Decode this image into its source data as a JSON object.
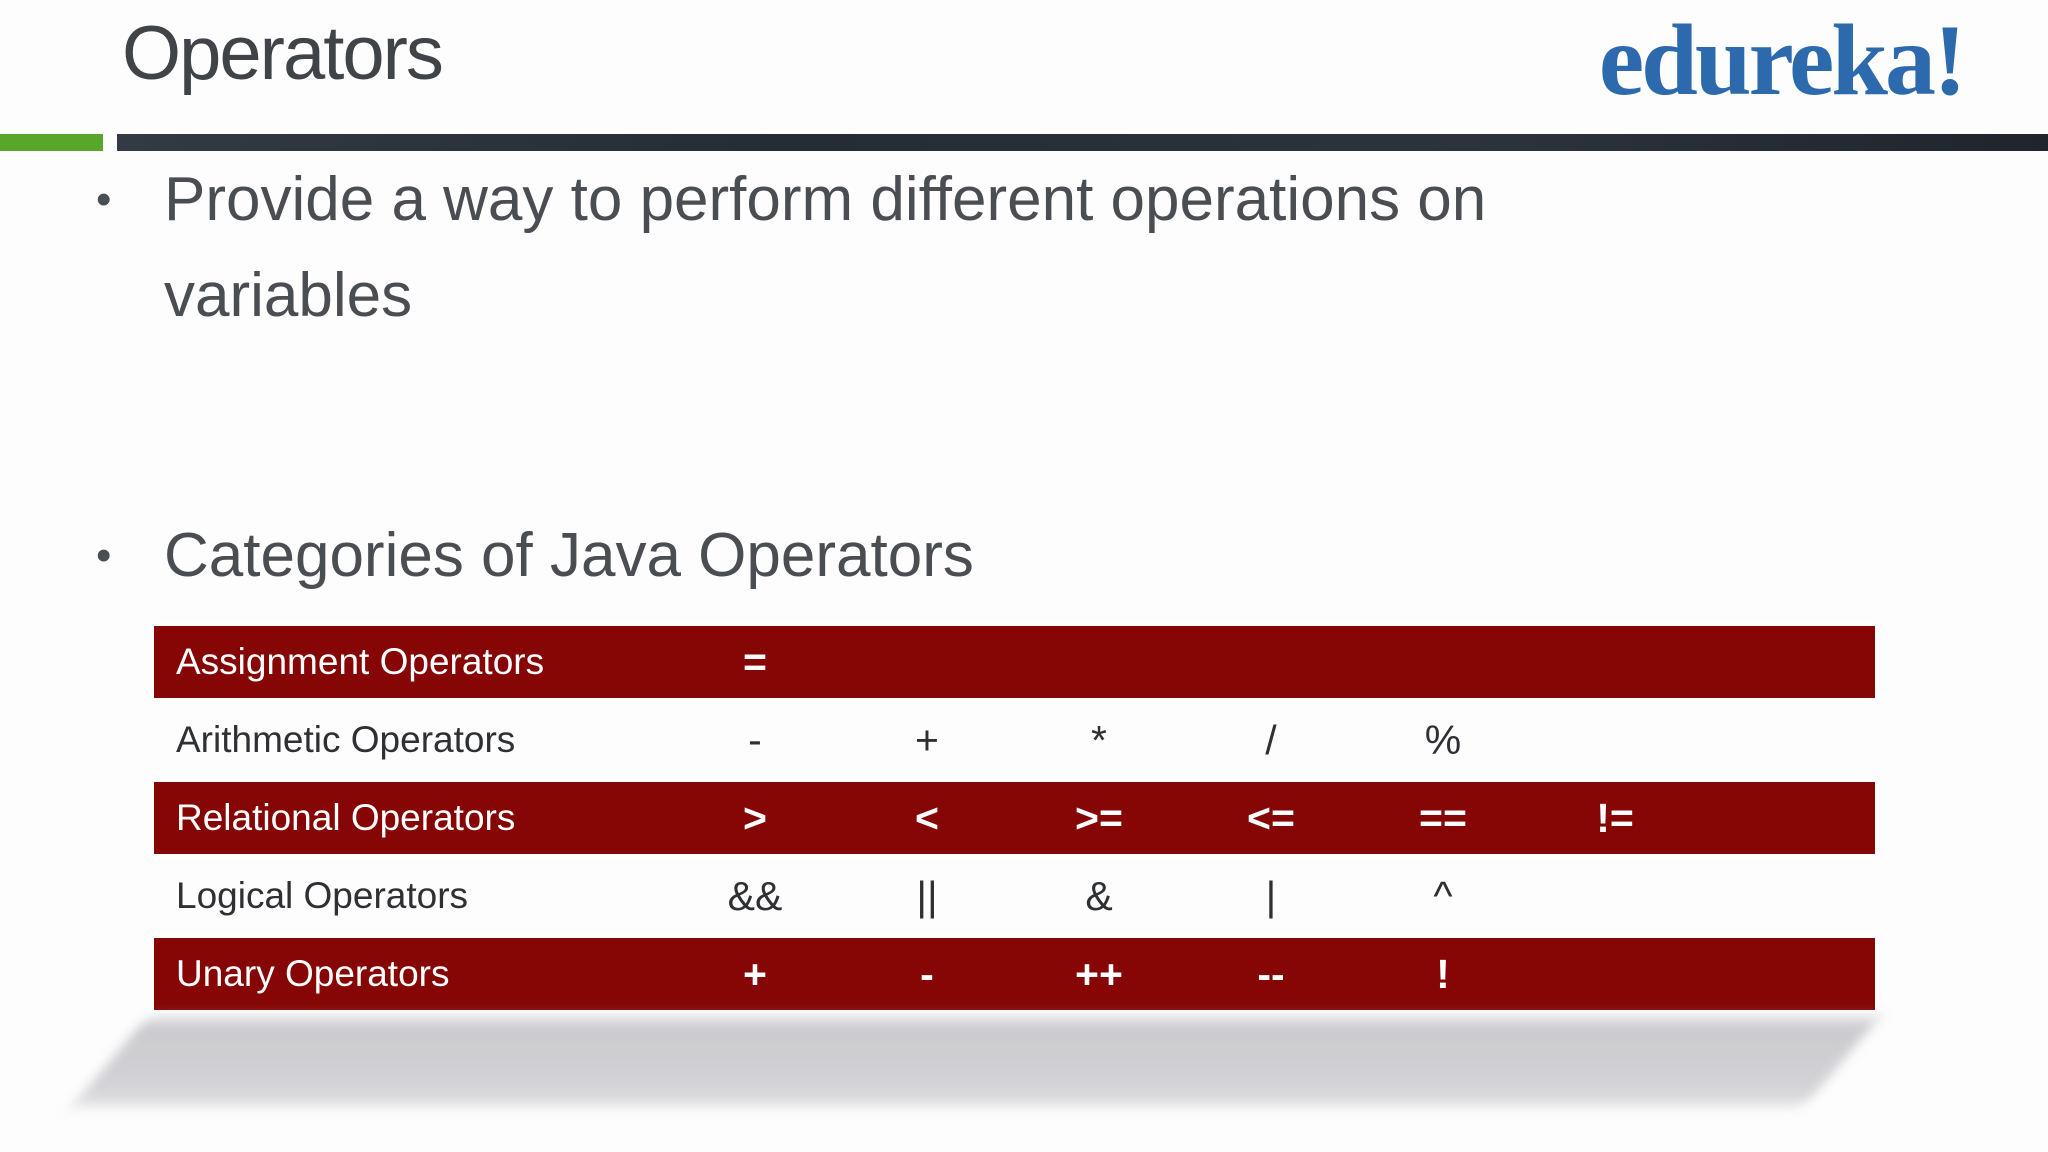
{
  "title": "Operators",
  "logo_text": "edureka!",
  "bullet_glyph": "•",
  "bullets": [
    "Provide a way to perform different operations on\nvariables",
    "Categories of Java Operators"
  ],
  "table": {
    "rows": [
      {
        "label": "Assignment Operators",
        "symbols": [
          "=",
          "",
          "",
          "",
          "",
          ""
        ]
      },
      {
        "label": "Arithmetic Operators",
        "symbols": [
          "-",
          "+",
          "*",
          "/",
          "%",
          ""
        ]
      },
      {
        "label": "Relational Operators",
        "symbols": [
          ">",
          "<",
          ">=",
          "<=",
          "==",
          "!="
        ]
      },
      {
        "label": "Logical Operators",
        "symbols": [
          "&&",
          "||",
          "&",
          "|",
          "^",
          ""
        ]
      },
      {
        "label": "Unary Operators",
        "symbols": [
          "+",
          "-",
          "++",
          "--",
          "!",
          ""
        ]
      }
    ]
  },
  "colors": {
    "table_red": "#860606",
    "accent_green": "#5aa62a",
    "divider_dark": "#2a3038",
    "logo_blue": "#2d6aad",
    "heading_text": "#404347",
    "body_text": "#4a4d52",
    "shadow_gray": "#c9c9cd"
  }
}
